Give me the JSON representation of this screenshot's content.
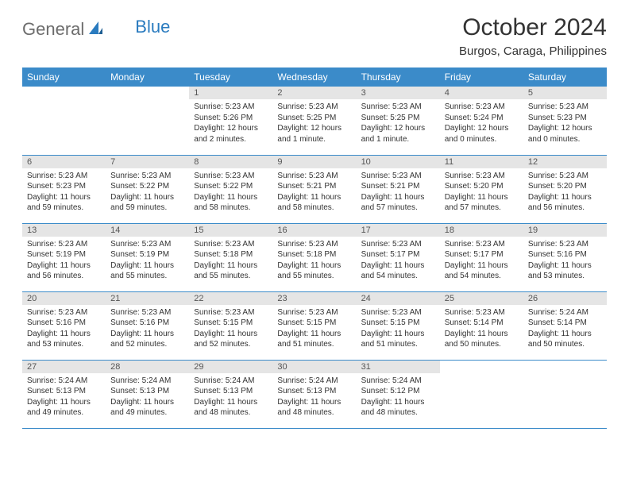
{
  "logo": {
    "text1": "General",
    "text2": "Blue"
  },
  "title": "October 2024",
  "location": "Burgos, Caraga, Philippines",
  "colors": {
    "header_bg": "#3b8bc9",
    "header_text": "#ffffff",
    "daynum_bg": "#e5e5e5",
    "row_border": "#3b8bc9",
    "logo_gray": "#6c6c6c",
    "logo_blue": "#2a7bbf"
  },
  "day_headers": [
    "Sunday",
    "Monday",
    "Tuesday",
    "Wednesday",
    "Thursday",
    "Friday",
    "Saturday"
  ],
  "weeks": [
    [
      {
        "n": "",
        "lines": []
      },
      {
        "n": "",
        "lines": []
      },
      {
        "n": "1",
        "lines": [
          "Sunrise: 5:23 AM",
          "Sunset: 5:26 PM",
          "Daylight: 12 hours and 2 minutes."
        ]
      },
      {
        "n": "2",
        "lines": [
          "Sunrise: 5:23 AM",
          "Sunset: 5:25 PM",
          "Daylight: 12 hours and 1 minute."
        ]
      },
      {
        "n": "3",
        "lines": [
          "Sunrise: 5:23 AM",
          "Sunset: 5:25 PM",
          "Daylight: 12 hours and 1 minute."
        ]
      },
      {
        "n": "4",
        "lines": [
          "Sunrise: 5:23 AM",
          "Sunset: 5:24 PM",
          "Daylight: 12 hours and 0 minutes."
        ]
      },
      {
        "n": "5",
        "lines": [
          "Sunrise: 5:23 AM",
          "Sunset: 5:23 PM",
          "Daylight: 12 hours and 0 minutes."
        ]
      }
    ],
    [
      {
        "n": "6",
        "lines": [
          "Sunrise: 5:23 AM",
          "Sunset: 5:23 PM",
          "Daylight: 11 hours and 59 minutes."
        ]
      },
      {
        "n": "7",
        "lines": [
          "Sunrise: 5:23 AM",
          "Sunset: 5:22 PM",
          "Daylight: 11 hours and 59 minutes."
        ]
      },
      {
        "n": "8",
        "lines": [
          "Sunrise: 5:23 AM",
          "Sunset: 5:22 PM",
          "Daylight: 11 hours and 58 minutes."
        ]
      },
      {
        "n": "9",
        "lines": [
          "Sunrise: 5:23 AM",
          "Sunset: 5:21 PM",
          "Daylight: 11 hours and 58 minutes."
        ]
      },
      {
        "n": "10",
        "lines": [
          "Sunrise: 5:23 AM",
          "Sunset: 5:21 PM",
          "Daylight: 11 hours and 57 minutes."
        ]
      },
      {
        "n": "11",
        "lines": [
          "Sunrise: 5:23 AM",
          "Sunset: 5:20 PM",
          "Daylight: 11 hours and 57 minutes."
        ]
      },
      {
        "n": "12",
        "lines": [
          "Sunrise: 5:23 AM",
          "Sunset: 5:20 PM",
          "Daylight: 11 hours and 56 minutes."
        ]
      }
    ],
    [
      {
        "n": "13",
        "lines": [
          "Sunrise: 5:23 AM",
          "Sunset: 5:19 PM",
          "Daylight: 11 hours and 56 minutes."
        ]
      },
      {
        "n": "14",
        "lines": [
          "Sunrise: 5:23 AM",
          "Sunset: 5:19 PM",
          "Daylight: 11 hours and 55 minutes."
        ]
      },
      {
        "n": "15",
        "lines": [
          "Sunrise: 5:23 AM",
          "Sunset: 5:18 PM",
          "Daylight: 11 hours and 55 minutes."
        ]
      },
      {
        "n": "16",
        "lines": [
          "Sunrise: 5:23 AM",
          "Sunset: 5:18 PM",
          "Daylight: 11 hours and 55 minutes."
        ]
      },
      {
        "n": "17",
        "lines": [
          "Sunrise: 5:23 AM",
          "Sunset: 5:17 PM",
          "Daylight: 11 hours and 54 minutes."
        ]
      },
      {
        "n": "18",
        "lines": [
          "Sunrise: 5:23 AM",
          "Sunset: 5:17 PM",
          "Daylight: 11 hours and 54 minutes."
        ]
      },
      {
        "n": "19",
        "lines": [
          "Sunrise: 5:23 AM",
          "Sunset: 5:16 PM",
          "Daylight: 11 hours and 53 minutes."
        ]
      }
    ],
    [
      {
        "n": "20",
        "lines": [
          "Sunrise: 5:23 AM",
          "Sunset: 5:16 PM",
          "Daylight: 11 hours and 53 minutes."
        ]
      },
      {
        "n": "21",
        "lines": [
          "Sunrise: 5:23 AM",
          "Sunset: 5:16 PM",
          "Daylight: 11 hours and 52 minutes."
        ]
      },
      {
        "n": "22",
        "lines": [
          "Sunrise: 5:23 AM",
          "Sunset: 5:15 PM",
          "Daylight: 11 hours and 52 minutes."
        ]
      },
      {
        "n": "23",
        "lines": [
          "Sunrise: 5:23 AM",
          "Sunset: 5:15 PM",
          "Daylight: 11 hours and 51 minutes."
        ]
      },
      {
        "n": "24",
        "lines": [
          "Sunrise: 5:23 AM",
          "Sunset: 5:15 PM",
          "Daylight: 11 hours and 51 minutes."
        ]
      },
      {
        "n": "25",
        "lines": [
          "Sunrise: 5:23 AM",
          "Sunset: 5:14 PM",
          "Daylight: 11 hours and 50 minutes."
        ]
      },
      {
        "n": "26",
        "lines": [
          "Sunrise: 5:24 AM",
          "Sunset: 5:14 PM",
          "Daylight: 11 hours and 50 minutes."
        ]
      }
    ],
    [
      {
        "n": "27",
        "lines": [
          "Sunrise: 5:24 AM",
          "Sunset: 5:13 PM",
          "Daylight: 11 hours and 49 minutes."
        ]
      },
      {
        "n": "28",
        "lines": [
          "Sunrise: 5:24 AM",
          "Sunset: 5:13 PM",
          "Daylight: 11 hours and 49 minutes."
        ]
      },
      {
        "n": "29",
        "lines": [
          "Sunrise: 5:24 AM",
          "Sunset: 5:13 PM",
          "Daylight: 11 hours and 48 minutes."
        ]
      },
      {
        "n": "30",
        "lines": [
          "Sunrise: 5:24 AM",
          "Sunset: 5:13 PM",
          "Daylight: 11 hours and 48 minutes."
        ]
      },
      {
        "n": "31",
        "lines": [
          "Sunrise: 5:24 AM",
          "Sunset: 5:12 PM",
          "Daylight: 11 hours and 48 minutes."
        ]
      },
      {
        "n": "",
        "lines": []
      },
      {
        "n": "",
        "lines": []
      }
    ]
  ]
}
